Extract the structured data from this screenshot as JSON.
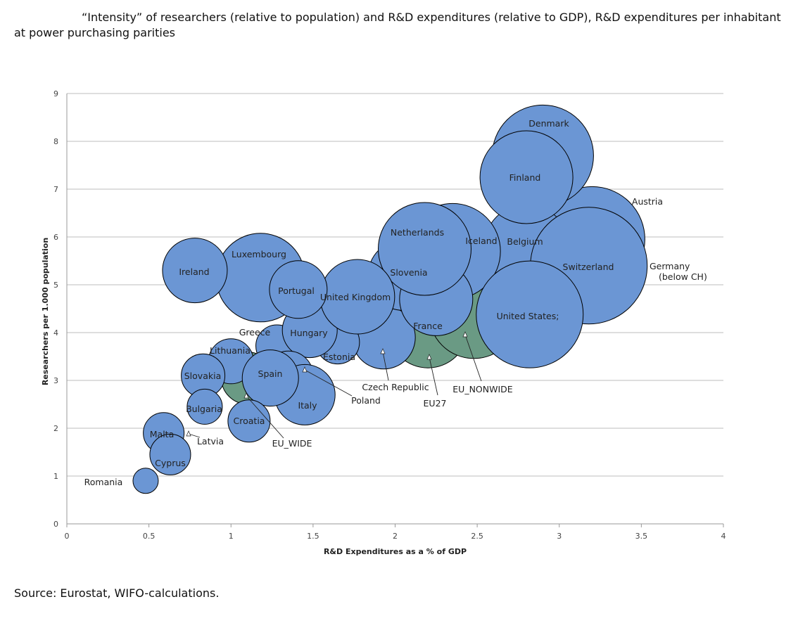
{
  "title": "“Intensity” of researchers (relative to population) and R&D expenditures (relative to GDP), R&D expenditures per inhabitant at power purchasing parities",
  "source": "Source: Eurostat, WIFO-calculations.",
  "colors": {
    "bubble": "#6b96d4",
    "eu_bubble": "#6a9a84",
    "stroke": "#000000",
    "grid": "#bdbdbd"
  },
  "chart_data": {
    "type": "bubble",
    "xlabel": "R&D Expenditures as a % of GDP",
    "ylabel": "Researchers per 1.000 population",
    "xlim": [
      0,
      4
    ],
    "ylim": [
      0,
      9
    ],
    "xticks": [
      "0",
      "0.5",
      "1",
      "1.5",
      "2",
      "2.5",
      "3",
      "3.5",
      "4"
    ],
    "yticks": [
      "0",
      "1",
      "2",
      "3",
      "4",
      "5",
      "6",
      "7",
      "8",
      "9"
    ],
    "grid": true,
    "points": [
      {
        "name": "EU_WIDE",
        "label": "EU_WIDE",
        "x": 1.1,
        "y": 3.05,
        "size": 37,
        "group": "eu"
      },
      {
        "name": "EU27",
        "label": "EU27",
        "x": 2.2,
        "y": 4.1,
        "size": 57,
        "group": "eu"
      },
      {
        "name": "EU_NONWIDE",
        "label": "EU_NONWIDE",
        "x": 2.48,
        "y": 4.4,
        "size": 64,
        "group": "eu"
      },
      {
        "name": "Austria",
        "label": "Austria",
        "x": 3.2,
        "y": 5.95,
        "size": 75
      },
      {
        "name": "Denmark",
        "label": "Denmark",
        "x": 2.9,
        "y": 7.7,
        "size": 72
      },
      {
        "name": "Belgium",
        "label": "Belgium",
        "x": 2.8,
        "y": 5.8,
        "size": 60
      },
      {
        "name": "Iceland",
        "label": "Iceland",
        "x": 2.35,
        "y": 5.7,
        "size": 68
      },
      {
        "name": "Czech Republic",
        "label": "Czech Republic",
        "x": 1.93,
        "y": 3.9,
        "size": 45
      },
      {
        "name": "Slovenia",
        "label": "Slovenia",
        "x": 2.05,
        "y": 5.2,
        "size": 50
      },
      {
        "name": "Germany",
        "label": "Germany\n(below CH)",
        "x": 3.1,
        "y": 5.2,
        "size": 40
      },
      {
        "name": "France",
        "label": "France",
        "x": 2.25,
        "y": 4.7,
        "size": 52
      },
      {
        "name": "Netherlands",
        "label": "Netherlands",
        "x": 2.18,
        "y": 5.75,
        "size": 66
      },
      {
        "name": "Finland",
        "label": "Finland",
        "x": 2.8,
        "y": 7.25,
        "size": 66
      },
      {
        "name": "Switzerland",
        "label": "Switzerland",
        "x": 3.18,
        "y": 5.4,
        "size": 83
      },
      {
        "name": "United States",
        "label": "United States;",
        "x": 2.82,
        "y": 4.38,
        "size": 76
      },
      {
        "name": "Estonia",
        "label": "Estonia",
        "x": 1.65,
        "y": 3.8,
        "size": 31
      },
      {
        "name": "Greece",
        "label": "Greece",
        "x": 1.28,
        "y": 3.72,
        "size": 30
      },
      {
        "name": "Hungary",
        "label": "Hungary",
        "x": 1.48,
        "y": 4.05,
        "size": 39
      },
      {
        "name": "United Kingdom",
        "label": "United Kingdom",
        "x": 1.77,
        "y": 4.75,
        "size": 53
      },
      {
        "name": "Luxembourg",
        "label": "Luxembourg",
        "x": 1.18,
        "y": 5.15,
        "size": 63
      },
      {
        "name": "Portugal",
        "label": "Portugal",
        "x": 1.41,
        "y": 4.9,
        "size": 41
      },
      {
        "name": "Ireland",
        "label": "Ireland",
        "x": 0.78,
        "y": 5.3,
        "size": 46
      },
      {
        "name": "Lithuania",
        "label": "Lithuania",
        "x": 1.0,
        "y": 3.4,
        "size": 32
      },
      {
        "name": "Poland",
        "label": "Poland",
        "x": 1.35,
        "y": 3.1,
        "size": 35
      },
      {
        "name": "Italy",
        "label": "Italy",
        "x": 1.45,
        "y": 2.7,
        "size": 43
      },
      {
        "name": "Spain",
        "label": "Spain",
        "x": 1.24,
        "y": 3.05,
        "size": 40
      },
      {
        "name": "Slovakia",
        "label": "Slovakia",
        "x": 0.83,
        "y": 3.1,
        "size": 31
      },
      {
        "name": "Bulgaria",
        "label": "Bulgaria",
        "x": 0.84,
        "y": 2.45,
        "size": 25
      },
      {
        "name": "Croatia",
        "label": "Croatia",
        "x": 1.11,
        "y": 2.15,
        "size": 30
      },
      {
        "name": "Latvia",
        "label": "Latvia",
        "x": 0.63,
        "y": 1.9,
        "size": 19
      },
      {
        "name": "Malta",
        "label": "Malta",
        "x": 0.59,
        "y": 1.9,
        "size": 29
      },
      {
        "name": "Cyprus",
        "label": "Cyprus",
        "x": 0.63,
        "y": 1.45,
        "size": 29
      },
      {
        "name": "Romania",
        "label": "Romania",
        "x": 0.48,
        "y": 0.9,
        "size": 18
      }
    ]
  }
}
